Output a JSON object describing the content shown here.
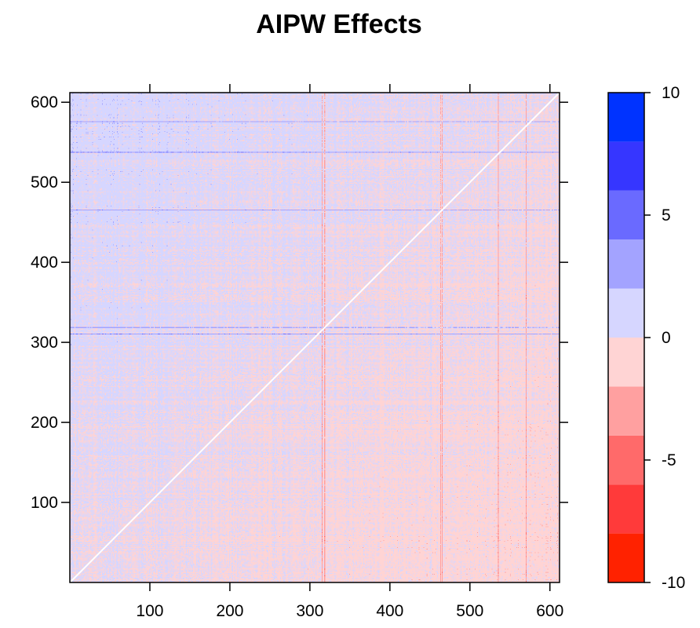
{
  "chart_data": {
    "type": "heatmap",
    "title": "AIPW Effects",
    "xlabel": "",
    "ylabel": "",
    "matrix_size": 612,
    "xlim": [
      0,
      612
    ],
    "ylim": [
      0,
      612
    ],
    "x_ticks": [
      100,
      200,
      300,
      400,
      500,
      600
    ],
    "y_ticks": [
      100,
      200,
      300,
      400,
      500,
      600
    ],
    "x_tick_labels": [
      "100",
      "200",
      "300",
      "400",
      "500",
      "600"
    ],
    "y_tick_labels": [
      "100",
      "200",
      "300",
      "400",
      "500",
      "600"
    ],
    "diagonal_value": 0,
    "colorbar": {
      "range": [
        -10,
        10
      ],
      "breaks": [
        -10,
        -8,
        -6,
        -4,
        -2,
        0,
        2,
        4,
        6,
        8,
        10
      ],
      "tick_values": [
        -10,
        -5,
        0,
        5,
        10
      ],
      "tick_labels": [
        "-10",
        "-5",
        "0",
        "5",
        "10"
      ],
      "colors": [
        "#ff2200",
        "#ff3a3a",
        "#ff6a6a",
        "#ffa0a0",
        "#ffd4d4",
        "#d6d6ff",
        "#a3a3ff",
        "#6a6aff",
        "#3636ff",
        "#0033ff"
      ]
    },
    "pattern_summary": {
      "upper_left_region": "mostly 0 to 2 (light blue)",
      "lower_right_region": "mostly -2 to 0 (light red)",
      "strong_blue_rows": [
        575,
        537,
        465,
        318,
        310
      ],
      "strong_red_columns": [
        315,
        318,
        463,
        465,
        535,
        570
      ]
    }
  }
}
